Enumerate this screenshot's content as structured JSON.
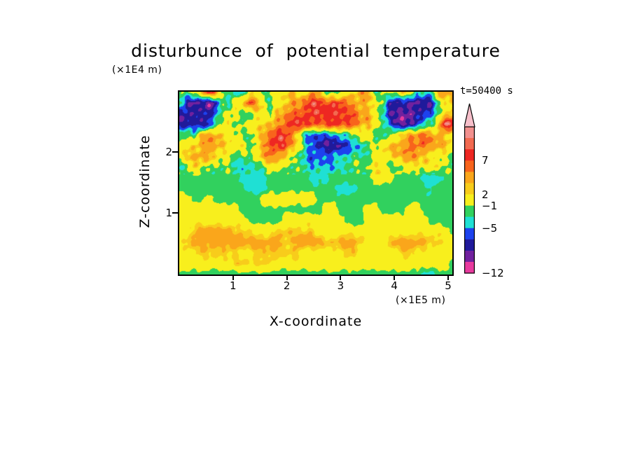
{
  "title": "disturbunce of potential temperature",
  "y_axis_unit": "(×1E4 m)",
  "x_axis_unit": "(×1E5 m)",
  "y_axis_label": "Z-coordinate",
  "x_axis_label": "X-coordinate",
  "time_label": "t=50400 s",
  "chart_data": {
    "type": "heatmap",
    "title": "disturbunce of potential temperature",
    "xlabel": "X-coordinate (×1E5 m)",
    "ylabel": "Z-coordinate (×1E4 m)",
    "time": "t=50400 s",
    "x_range": [
      0,
      5.1
    ],
    "y_range": [
      0,
      3.0
    ],
    "x_ticks": [
      1,
      2,
      3,
      4,
      5
    ],
    "y_ticks": [
      1,
      2
    ],
    "legend_position": "right",
    "grid_on": false,
    "levels_desc": [
      12,
      11,
      10,
      9,
      7,
      5,
      3,
      2,
      -1,
      -3,
      -5,
      -7,
      -9,
      -11,
      -12
    ],
    "colors_desc": [
      "#f7bfca",
      "#f2908e",
      "#f26a50",
      "#ee2722",
      "#f8641c",
      "#faa61b",
      "#f8cc1b",
      "#f8ef1d",
      "#31d15e",
      "#1fe0d4",
      "#1d42ee",
      "#201a9b",
      "#71219e",
      "#e83a9e"
    ],
    "colorbar_labels": [
      {
        "text": "7",
        "boundary_index": 4
      },
      {
        "text": "2",
        "boundary_index": 7
      },
      {
        "text": "−1",
        "boundary_index": 8
      },
      {
        "text": "−5",
        "boundary_index": 10
      },
      {
        "text": "−12",
        "boundary_index": 14
      }
    ],
    "colorbar_arrow_top": true,
    "grid": {
      "nx": 40,
      "ny": 18,
      "note": "approximate field values, rows top (z=3.0) to bottom (z=0)",
      "values": [
        [
          -2,
          -2,
          1,
          1,
          8,
          8,
          -2,
          -2,
          -4,
          -4,
          1,
          1,
          -2,
          -2,
          1,
          1,
          2.5,
          1,
          1,
          4,
          4,
          -2,
          -2,
          -2,
          1,
          1,
          4,
          4,
          -2,
          -2,
          1,
          1,
          2.5,
          2.5,
          -4,
          -4,
          -4,
          4,
          4,
          4
        ],
        [
          -2,
          -8.5,
          -8.5,
          -8.5,
          -10.3,
          -8.5,
          -2,
          -4,
          1,
          1,
          8,
          4,
          1,
          -2,
          1,
          2.5,
          4,
          4,
          6,
          8,
          8,
          6,
          8,
          8,
          6,
          4,
          4,
          2.5,
          1,
          -2,
          -8.5,
          -8.5,
          -8.5,
          -8.5,
          -8.5,
          -8.5,
          -8.5,
          -2,
          1,
          2.5
        ],
        [
          -8.5,
          -8.5,
          -8.5,
          -8.5,
          -8.5,
          -6,
          -2,
          1,
          1,
          -2,
          -2,
          1,
          1,
          -2,
          2.5,
          4,
          6,
          6,
          8,
          8,
          9.5,
          8,
          8,
          8,
          6,
          6,
          4,
          4,
          1,
          -2,
          -8.5,
          -8.5,
          -10.3,
          -10.3,
          -8.5,
          -8.5,
          -6,
          -2,
          1,
          4
        ],
        [
          -8.5,
          -8.5,
          -6,
          -8.5,
          -8.5,
          -2,
          -2,
          1,
          -2,
          -2,
          1,
          1,
          2.5,
          4,
          4,
          6,
          8,
          8,
          8,
          6,
          6,
          8,
          8,
          8,
          8,
          6,
          4,
          2.5,
          1,
          -2,
          -6,
          -8.5,
          -10.3,
          -8.5,
          -6,
          -4,
          -2,
          1,
          9.5,
          9.5
        ],
        [
          -2,
          -2,
          -4,
          2.5,
          4,
          4,
          2.5,
          1,
          1,
          -2,
          -2,
          1,
          2.5,
          6,
          8,
          8,
          6,
          1,
          -4,
          -6,
          -6,
          -6,
          -6,
          -4,
          -4,
          -2,
          1,
          1,
          -2,
          -2,
          -2,
          1,
          2.5,
          4,
          4,
          6,
          4,
          4,
          2.5,
          1
        ],
        [
          1,
          1,
          2.5,
          4,
          4,
          4,
          2.5,
          1,
          1,
          1,
          -2,
          1,
          4,
          8,
          8,
          8,
          4,
          1,
          -4,
          -6,
          -8.5,
          -8.5,
          -8.5,
          -8.5,
          -6,
          -6,
          -4,
          -2,
          -2,
          1,
          2.5,
          4,
          4,
          6,
          6,
          6,
          4,
          4,
          2.5,
          1
        ],
        [
          1,
          2.5,
          2.5,
          4,
          4,
          2.5,
          1,
          1,
          -2,
          -2,
          -2,
          1,
          2.5,
          6,
          4,
          2.5,
          1,
          -2,
          -4,
          -6,
          -6,
          -6,
          -6,
          -4,
          -4,
          -2,
          -2,
          -2,
          1,
          1,
          1,
          2.5,
          4,
          4,
          4,
          2.5,
          1,
          1,
          1,
          -2
        ],
        [
          -2,
          -2,
          2.5,
          1,
          -2,
          -2,
          -2,
          -2,
          -4,
          -4,
          -4,
          -2,
          -2,
          1,
          1,
          -2,
          -2,
          -2,
          -4,
          -4,
          -4,
          -4,
          -4,
          -4,
          -2,
          -2,
          -2,
          -2,
          1,
          1,
          -2,
          -2,
          1,
          1,
          1,
          1,
          1,
          1,
          -2,
          -2
        ],
        [
          -2,
          -2,
          -2,
          -2,
          -2,
          -2,
          -2,
          -2,
          -2,
          -4,
          -4,
          -4,
          -4,
          -2,
          -2,
          -2,
          -2,
          -2,
          -2,
          -4,
          -4,
          -4,
          -2,
          -2,
          -2,
          -2,
          -2,
          -2,
          1,
          1,
          1,
          -2,
          -2,
          -2,
          -2,
          -4,
          -4,
          -4,
          -2,
          -2
        ],
        [
          -2,
          -2,
          -2,
          -2,
          -2,
          -2,
          -2,
          -2,
          -2,
          -2,
          -4,
          -4,
          -4,
          -2,
          -2,
          -2,
          -2,
          -2,
          -2,
          -2,
          -2,
          -2,
          -2,
          -4,
          -4,
          -4,
          -2,
          -2,
          -2,
          -2,
          -2,
          -2,
          -2,
          -2,
          -2,
          -2,
          -4,
          -2,
          -2,
          -2
        ],
        [
          1,
          1,
          -2,
          -2,
          1,
          -2,
          -2,
          -2,
          -2,
          -2,
          -2,
          -2,
          1,
          1,
          1,
          1,
          1,
          1,
          1,
          1,
          -2,
          -2,
          -2,
          -2,
          -2,
          -2,
          -2,
          -2,
          -2,
          -2,
          -2,
          -2,
          -2,
          -2,
          -2,
          -2,
          -2,
          -2,
          -2,
          -2
        ],
        [
          1,
          1,
          1,
          1,
          1,
          1,
          1,
          1,
          1,
          -2,
          -2,
          -2,
          -2,
          -2,
          -2,
          -2,
          -2,
          -2,
          -2,
          -2,
          -2,
          1,
          1,
          -2,
          -2,
          -2,
          -2,
          1,
          1,
          -2,
          -2,
          -2,
          -2,
          1,
          1,
          -2,
          -2,
          -2,
          -2,
          -2
        ],
        [
          1,
          1,
          1,
          1,
          1,
          1,
          1,
          1,
          1,
          1,
          -2,
          -2,
          -2,
          -2,
          -2,
          1,
          1,
          1,
          1,
          1,
          1,
          1,
          1,
          1,
          -2,
          -2,
          -2,
          1,
          1,
          1,
          1,
          1,
          1,
          1,
          1,
          1,
          -2,
          -2,
          -2,
          -2
        ],
        [
          1,
          1,
          2.5,
          4,
          4,
          4,
          4,
          4,
          2.5,
          2.5,
          2.5,
          1,
          1,
          1,
          2.5,
          2.5,
          2.5,
          2.5,
          2.5,
          2.5,
          1,
          1,
          1,
          1,
          1,
          1,
          1,
          1,
          1,
          1,
          1,
          1,
          1,
          1,
          1,
          1,
          1,
          1,
          1,
          -2
        ],
        [
          1,
          2.5,
          4,
          4,
          4,
          4,
          4,
          4,
          4,
          4,
          4,
          4,
          4,
          4,
          4,
          2.5,
          2.5,
          4,
          4,
          4,
          4,
          2.5,
          2.5,
          4,
          4,
          4,
          2.5,
          1,
          1,
          1,
          2.5,
          4,
          4,
          4,
          4,
          4,
          2.5,
          2.5,
          1,
          1
        ],
        [
          1,
          1,
          1,
          2.5,
          2.5,
          2.5,
          2.5,
          2.5,
          2.5,
          1,
          1,
          2.5,
          2.5,
          2.5,
          2.5,
          2.5,
          2.5,
          2.5,
          1,
          1,
          1,
          1,
          1,
          1,
          2.5,
          2.5,
          1,
          1,
          1,
          1,
          1,
          1,
          2.5,
          2.5,
          1,
          1,
          1,
          1,
          1,
          1
        ],
        [
          1,
          1,
          1,
          1,
          1,
          1,
          1,
          1,
          2.5,
          2.5,
          2.5,
          2.5,
          2.5,
          2.5,
          1,
          1,
          1,
          1,
          1,
          1,
          1,
          1,
          1,
          1,
          1,
          1,
          1,
          1,
          1,
          1,
          1,
          1,
          1,
          1,
          1,
          1,
          1,
          1,
          1,
          -2
        ],
        [
          -2,
          -2,
          -2,
          -2,
          -2,
          -2,
          -2,
          -2,
          -2,
          -2,
          -2,
          -2,
          -2,
          -2,
          -2,
          -2,
          -2,
          -2,
          -2,
          -2,
          -2,
          -2,
          -2,
          -2,
          -2,
          -2,
          -2,
          -2,
          -2,
          -2,
          -2,
          -2,
          -2,
          -2,
          -2,
          -4,
          -4,
          -2,
          -2,
          -2
        ]
      ]
    }
  }
}
